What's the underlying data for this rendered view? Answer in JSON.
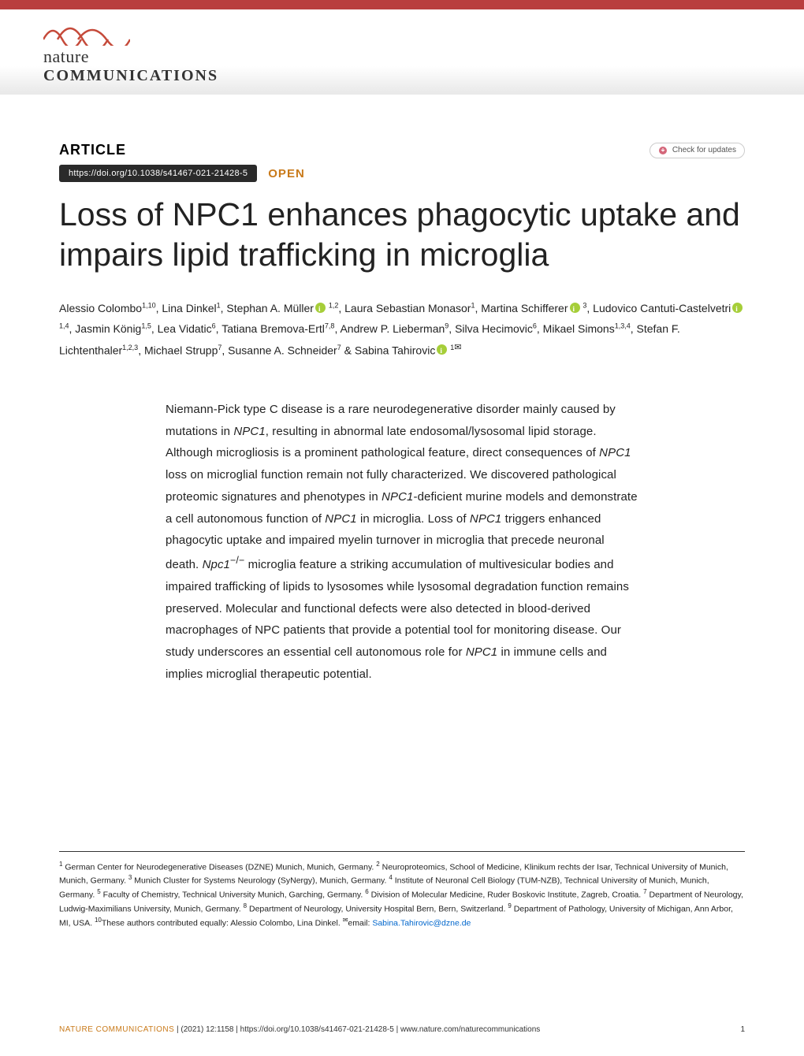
{
  "brand": {
    "line1": "nature",
    "line2": "COMMUNICATIONS",
    "wave_color": "#c54a3a",
    "text_color": "#333333"
  },
  "header": {
    "accent_color": "#b93e3e"
  },
  "labels": {
    "article": "ARTICLE",
    "open": "OPEN",
    "check_updates": "Check for updates"
  },
  "doi": {
    "text": "https://doi.org/10.1038/s41467-021-21428-5",
    "pill_bg": "#2a2a2a",
    "open_color": "#c97a1a"
  },
  "title": "Loss of NPC1 enhances phagocytic uptake and impairs lipid trafficking in microglia",
  "authors_html": "Alessio Colombo<sup>1,10</sup>, Lina Dinkel<sup>1</sup>, Stephan A. Müller<span class='orcid'></span> <sup>1,2</sup>, Laura Sebastian Monasor<sup>1</sup>, Martina Schifferer<span class='orcid'></span> <sup>3</sup>, Ludovico Cantuti-Castelvetri<span class='orcid'></span> <sup>1,4</sup>, Jasmin König<sup>1,5</sup>, Lea Vidatic<sup>6</sup>, Tatiana Bremova-Ertl<sup>7,8</sup>, Andrew P. Lieberman<sup>9</sup>, Silva Hecimovic<sup>6</sup>, Mikael Simons<sup>1,3,4</sup>, Stefan F. Lichtenthaler<sup>1,2,3</sup>, Michael Strupp<sup>7</sup>, Susanne A. Schneider<sup>7</sup> &amp; Sabina Tahirovic<span class='orcid'></span> <sup>1<span class='corresp'>✉</span></sup>",
  "abstract": "Niemann-Pick type C disease is a rare neurodegenerative disorder mainly caused by mutations in NPC1, resulting in abnormal late endosomal/lysosomal lipid storage. Although microgliosis is a prominent pathological feature, direct consequences of NPC1 loss on microglial function remain not fully characterized. We discovered pathological proteomic signatures and phenotypes in NPC1-deficient murine models and demonstrate a cell autonomous function of NPC1 in microglia. Loss of NPC1 triggers enhanced phagocytic uptake and impaired myelin turnover in microglia that precede neuronal death. Npc1−/− microglia feature a striking accumulation of multivesicular bodies and impaired trafficking of lipids to lysosomes while lysosomal degradation function remains preserved. Molecular and functional defects were also detected in blood-derived macrophages of NPC patients that provide a potential tool for monitoring disease. Our study underscores an essential cell autonomous role for NPC1 in immune cells and implies microglial therapeutic potential.",
  "affiliations": "<sup>1</sup> German Center for Neurodegenerative Diseases (DZNE) Munich, Munich, Germany. <sup>2</sup> Neuroproteomics, School of Medicine, Klinikum rechts der Isar, Technical University of Munich, Munich, Germany. <sup>3</sup> Munich Cluster for Systems Neurology (SyNergy), Munich, Germany. <sup>4</sup> Institute of Neuronal Cell Biology (TUM-NZB), Technical University of Munich, Munich, Germany. <sup>5</sup> Faculty of Chemistry, Technical University Munich, Garching, Germany. <sup>6</sup> Division of Molecular Medicine, Ruder Boskovic Institute, Zagreb, Croatia. <sup>7</sup> Department of Neurology, Ludwig-Maximilians University, Munich, Germany. <sup>8</sup> Department of Neurology, University Hospital Bern, Bern, Switzerland. <sup>9</sup> Department of Pathology, University of Michigan, Ann Arbor, MI, USA. <sup>10</sup>These authors contributed equally: Alessio Colombo, Lina Dinkel. <sup>✉</sup>email: <a href='#'>Sabina.Tahirovic@dzne.de</a>",
  "footer": {
    "journal": "NATURE COMMUNICATIONS",
    "citation": "|      (2021) 12:1158 | https://doi.org/10.1038/s41467-021-21428-5 | www.nature.com/naturecommunications",
    "page": "1"
  }
}
